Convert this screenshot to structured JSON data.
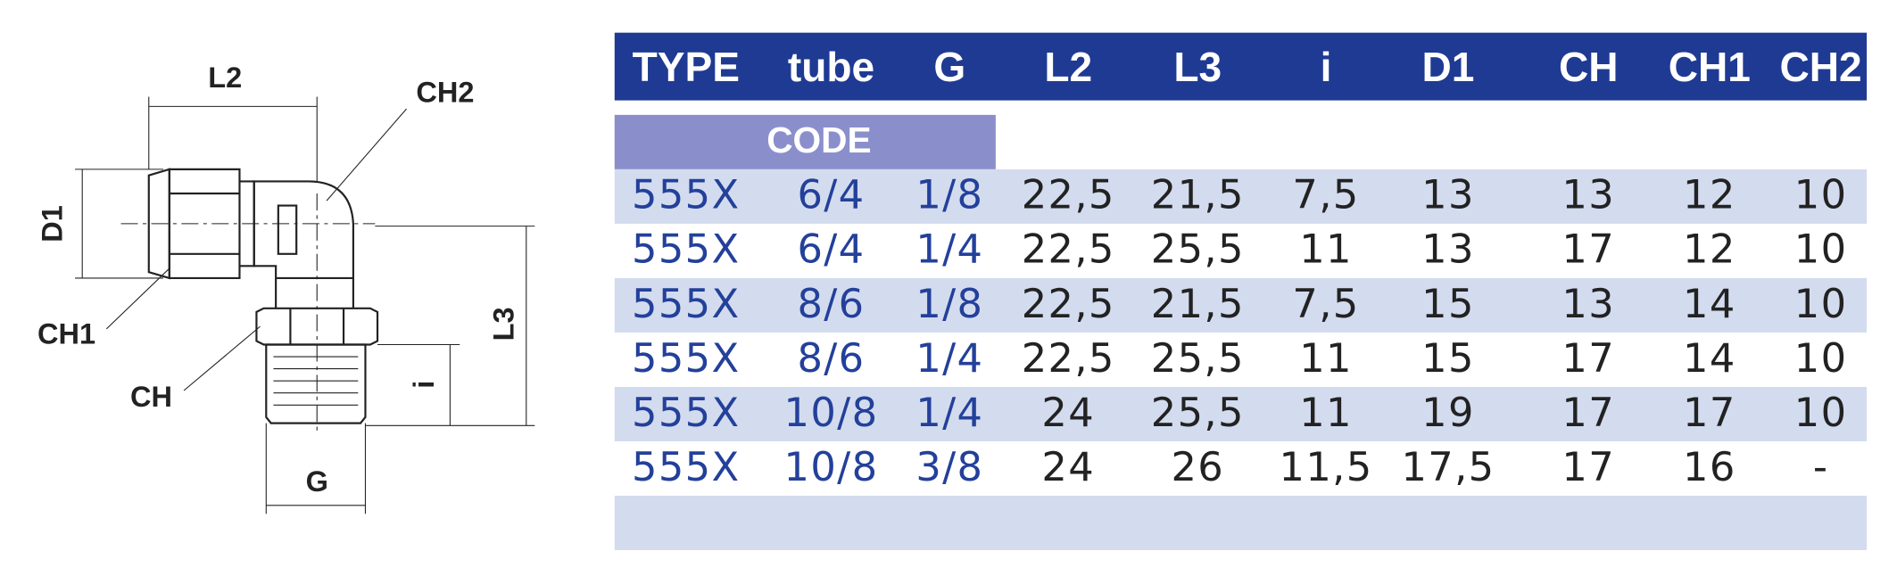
{
  "diagram": {
    "labels": {
      "L2": "L2",
      "CH2": "CH2",
      "D1": "D1",
      "L3": "L3",
      "CH1": "CH1",
      "CH": "CH",
      "i": "i",
      "G": "G"
    }
  },
  "table": {
    "headers": [
      "TYPE",
      "tube",
      "G",
      "L2",
      "L3",
      "i",
      "D1",
      "CH",
      "CH1",
      "CH2"
    ],
    "code_label": "CODE",
    "rows": [
      [
        "555X",
        "6/4",
        "1/8",
        "22,5",
        "21,5",
        "7,5",
        "13",
        "13",
        "12",
        "10"
      ],
      [
        "555X",
        "6/4",
        "1/4",
        "22,5",
        "25,5",
        "11",
        "13",
        "17",
        "12",
        "10"
      ],
      [
        "555X",
        "8/6",
        "1/8",
        "22,5",
        "21,5",
        "7,5",
        "15",
        "13",
        "14",
        "10"
      ],
      [
        "555X",
        "8/6",
        "1/4",
        "22,5",
        "25,5",
        "11",
        "15",
        "17",
        "14",
        "10"
      ],
      [
        "555X",
        "10/8",
        "1/4",
        "24",
        "25,5",
        "11",
        "19",
        "17",
        "17",
        "10"
      ],
      [
        "555X",
        "10/8",
        "3/8",
        "24",
        "26",
        "11,5",
        "17,5",
        "17",
        "16",
        "-"
      ]
    ]
  }
}
